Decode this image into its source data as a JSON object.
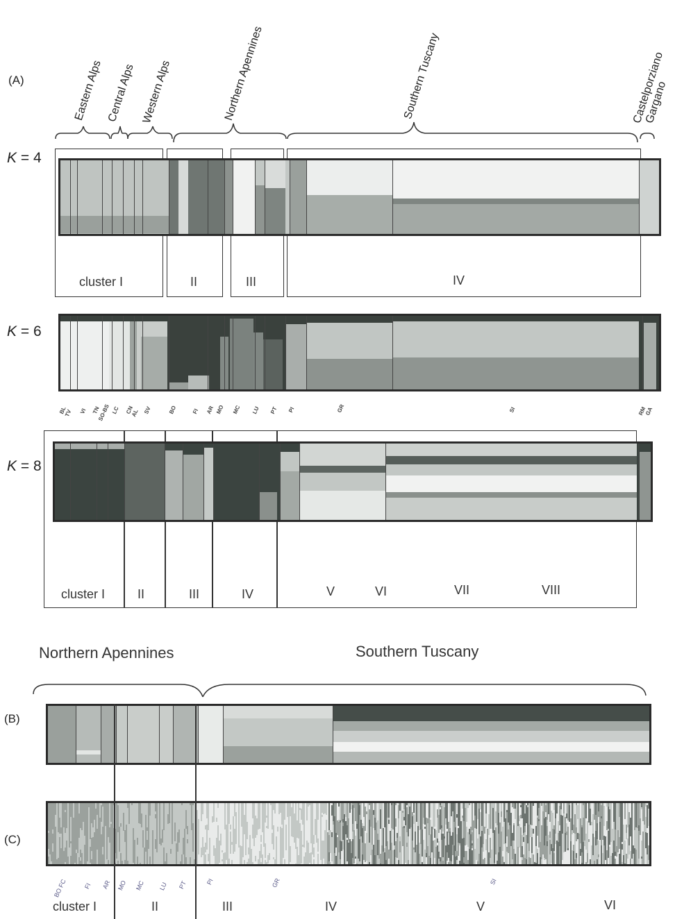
{
  "panel_labels": {
    "a": "(A)",
    "b": "(B)",
    "c": "(C)"
  },
  "k_labels": {
    "k4": "K = 4",
    "k6": "K = 6",
    "k8": "K = 8"
  },
  "regions_top": {
    "eastern_alps": "Eastern Alps",
    "central_alps": "Central  Alps",
    "western_alps": "Western Alps",
    "northern_apennines": "Northern Apennines",
    "southern_tuscany": "Southern Tuscany",
    "castelporziano": "Castelporziano",
    "gargano": "Gargano"
  },
  "clusters_k4": [
    "cluster I",
    "II",
    "III",
    "IV"
  ],
  "clusters_k8": [
    "cluster I",
    "II",
    "III",
    "IV",
    "V",
    "VI",
    "VII",
    "VIII"
  ],
  "pops_a": [
    "BL",
    "TV",
    "VI",
    "TN",
    "SO-BS",
    "LC",
    "CN",
    "AL",
    "SV",
    "BO",
    "FI",
    "AR",
    "MO",
    "MC",
    "LU",
    "PT",
    "PI",
    "GR",
    "SI",
    "RM",
    "GA"
  ],
  "regions_b": {
    "northern_apennines": "Northern Apennines",
    "southern_tuscany": "Southern Tuscany"
  },
  "pops_c": [
    "BO FC",
    "FI",
    "AR",
    "MO",
    "MC",
    "LU",
    "PT",
    "PI",
    "GR",
    "SI"
  ],
  "clusters_c": [
    "cluster I",
    "II",
    "III",
    "IV",
    "V",
    "VI"
  ],
  "colors": {
    "frame": "#2a2a2a",
    "dark": "#3d4540",
    "mid": "#8f9691",
    "light": "#c3c8c5",
    "pale": "#eef0ef"
  }
}
